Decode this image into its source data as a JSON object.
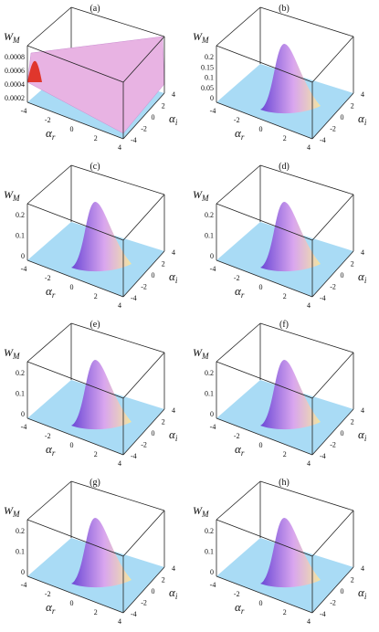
{
  "panels": [
    {
      "label": "(a)",
      "z_label": "W",
      "z_sub": "M",
      "z_ticks": [
        "0.0008",
        "0.0006",
        "0.0004",
        "0.0002"
      ],
      "x_label": "α",
      "x_sub": "r",
      "x_ticks": [
        "-4",
        "-2",
        "0",
        "2",
        "4"
      ],
      "y_label": "α",
      "y_sub": "i",
      "y_ticks": [
        "4",
        "2",
        "0",
        "-2",
        "-4"
      ],
      "surface": "ridge"
    },
    {
      "label": "(b)",
      "z_label": "W",
      "z_sub": "M",
      "z_ticks": [
        "0.2",
        "0.15",
        "0.1",
        "0.05",
        "0"
      ],
      "x_label": "α",
      "x_sub": "r",
      "x_ticks": [
        "-4",
        "-2",
        "0",
        "2",
        "4"
      ],
      "y_label": "α",
      "y_sub": "i",
      "y_ticks": [
        "4",
        "2",
        "0",
        "-2",
        "-4"
      ],
      "surface": "peak"
    },
    {
      "label": "(c)",
      "z_label": "W",
      "z_sub": "M",
      "z_ticks": [
        "0.2",
        "0.1",
        "0"
      ],
      "x_label": "α",
      "x_sub": "r",
      "x_ticks": [
        "-4",
        "-2",
        "0",
        "2",
        "4"
      ],
      "y_label": "α",
      "y_sub": "i",
      "y_ticks": [
        "4",
        "2",
        "0",
        "-2",
        "-4"
      ],
      "surface": "peak"
    },
    {
      "label": "(d)",
      "z_label": "W",
      "z_sub": "M",
      "z_ticks": [
        "0.2",
        "0.1",
        "0"
      ],
      "x_label": "α",
      "x_sub": "r",
      "x_ticks": [
        "-4",
        "-2",
        "0",
        "2",
        "4"
      ],
      "y_label": "α",
      "y_sub": "i",
      "y_ticks": [
        "4",
        "2",
        "0",
        "-2",
        "-4"
      ],
      "surface": "peak"
    },
    {
      "label": "(e)",
      "z_label": "W",
      "z_sub": "M",
      "z_ticks": [
        "0.2",
        "0.1",
        "0"
      ],
      "x_label": "α",
      "x_sub": "r",
      "x_ticks": [
        "-4",
        "-2",
        "0",
        "2",
        "4"
      ],
      "y_label": "α",
      "y_sub": "i",
      "y_ticks": [
        "4",
        "2",
        "0",
        "-2",
        "-4"
      ],
      "surface": "peak"
    },
    {
      "label": "(f)",
      "z_label": "W",
      "z_sub": "M",
      "z_ticks": [
        "0.2",
        "0.1",
        "0"
      ],
      "x_label": "α",
      "x_sub": "r",
      "x_ticks": [
        "-4",
        "-2",
        "0",
        "2",
        "4"
      ],
      "y_label": "α",
      "y_sub": "i",
      "y_ticks": [
        "4",
        "2",
        "0",
        "-2",
        "-4"
      ],
      "surface": "peak"
    },
    {
      "label": "(g)",
      "z_label": "W",
      "z_sub": "M",
      "z_ticks": [
        "0.2",
        "0.1",
        "0"
      ],
      "x_label": "α",
      "x_sub": "r",
      "x_ticks": [
        "-4",
        "-2",
        "0",
        "2",
        "4"
      ],
      "y_label": "α",
      "y_sub": "i",
      "y_ticks": [
        "4",
        "2",
        "0",
        "-2",
        "-4"
      ],
      "surface": "peak"
    },
    {
      "label": "(h)",
      "z_label": "W",
      "z_sub": "M",
      "z_ticks": [
        "0.2",
        "0.1",
        "0"
      ],
      "x_label": "α",
      "x_sub": "r",
      "x_ticks": [
        "-4",
        "-2",
        "0",
        "2",
        "4"
      ],
      "y_label": "α",
      "y_sub": "i",
      "y_ticks": [
        "4",
        "2",
        "0",
        "-2",
        "-4"
      ],
      "surface": "peak"
    }
  ],
  "colors": {
    "floor": "#a9dbf5",
    "frame": "#222222",
    "peak_top": "#d9a6ee",
    "peak_side": "#6a47d6",
    "ridge": "#e8b3e3",
    "ridge_edge": "#e0362c"
  }
}
